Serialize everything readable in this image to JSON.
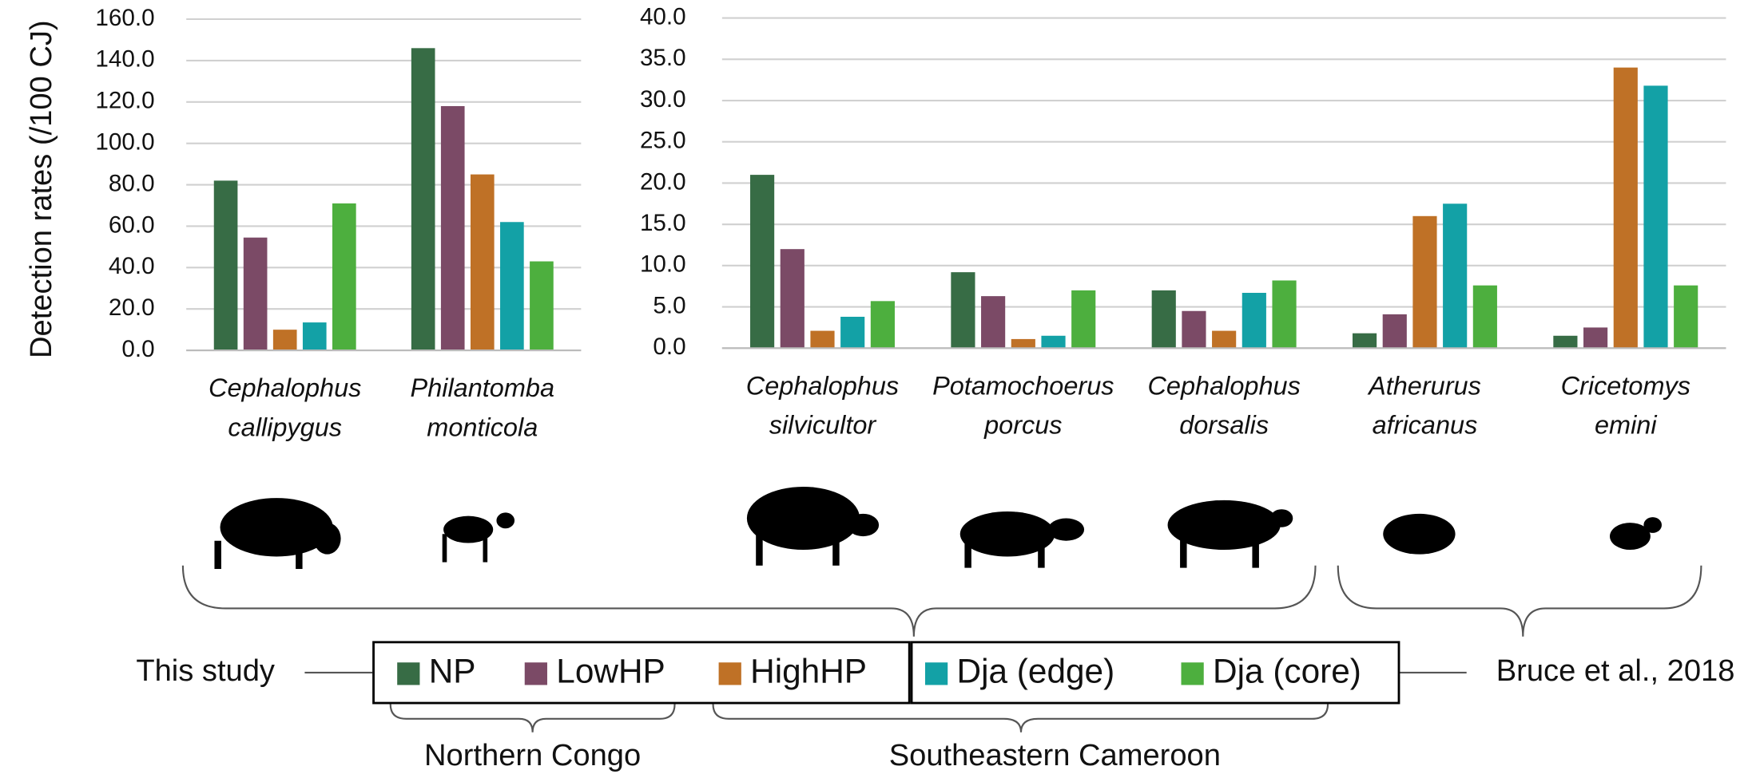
{
  "chart_data": [
    {
      "type": "bar",
      "y_label": "Detection rates (/100 CJ)",
      "categories": [
        [
          "Cephalophus",
          "callipygus"
        ],
        [
          "Philantomba",
          "monticola"
        ]
      ],
      "ylim": [
        0,
        160
      ],
      "yticks": [
        {
          "value": 0,
          "label": "0.0"
        },
        {
          "value": 20,
          "label": "20.0"
        },
        {
          "value": 40,
          "label": "40.0"
        },
        {
          "value": 60,
          "label": "60.0"
        },
        {
          "value": 80,
          "label": "80.0"
        },
        {
          "value": 100,
          "label": "100.0"
        },
        {
          "value": 120,
          "label": "120.0"
        },
        {
          "value": 140,
          "label": "140.0"
        },
        {
          "value": 160,
          "label": "160.0"
        }
      ],
      "grid": true,
      "series": [
        {
          "name": "NP",
          "color": "#376c45",
          "values": [
            82,
            146
          ]
        },
        {
          "name": "LowHP",
          "color": "#7b4a66",
          "values": [
            54.5,
            118
          ]
        },
        {
          "name": "HighHP",
          "color": "#bf7126",
          "values": [
            10,
            85
          ]
        },
        {
          "name": "Dja (edge)",
          "color": "#13a1a6",
          "values": [
            13.5,
            62
          ]
        },
        {
          "name": "Dja (core)",
          "color": "#4daf3e",
          "values": [
            71,
            43
          ]
        }
      ]
    },
    {
      "type": "bar",
      "categories": [
        [
          "Cephalophus",
          "silvicultor"
        ],
        [
          "Potamochoerus",
          "porcus"
        ],
        [
          "Cephalophus",
          "dorsalis"
        ],
        [
          "Atherurus",
          "africanus"
        ],
        [
          "Cricetomys",
          "emini"
        ]
      ],
      "ylim": [
        0,
        40
      ],
      "yticks": [
        {
          "value": 0,
          "label": "0.0"
        },
        {
          "value": 5,
          "label": "5.0"
        },
        {
          "value": 10,
          "label": "10.0"
        },
        {
          "value": 15,
          "label": "15.0"
        },
        {
          "value": 20,
          "label": "20.0"
        },
        {
          "value": 25,
          "label": "25.0"
        },
        {
          "value": 30,
          "label": "30.0"
        },
        {
          "value": 35,
          "label": "35.0"
        },
        {
          "value": 40,
          "label": "40.0"
        }
      ],
      "grid": true,
      "series": [
        {
          "color": "#376c45",
          "values": [
            21,
            9.2,
            7,
            1.8,
            1.5
          ]
        },
        {
          "color": "#7b4a66",
          "values": [
            12,
            6.3,
            4.5,
            4.1,
            2.5
          ]
        },
        {
          "color": "#bf7126",
          "values": [
            2.1,
            1.1,
            2.1,
            16,
            34
          ]
        },
        {
          "color": "#13a1a6",
          "values": [
            3.8,
            1.5,
            6.7,
            17.5,
            31.8
          ]
        },
        {
          "color": "#4daf3e",
          "values": [
            5.7,
            7,
            8.2,
            7.6,
            7.6
          ]
        }
      ]
    }
  ],
  "annotations": {
    "this_study": "This study",
    "bruce": "Bruce et al., 2018",
    "northern_congo": "Northern Congo",
    "southeastern_cameroon": "Southeastern Cameroon"
  }
}
